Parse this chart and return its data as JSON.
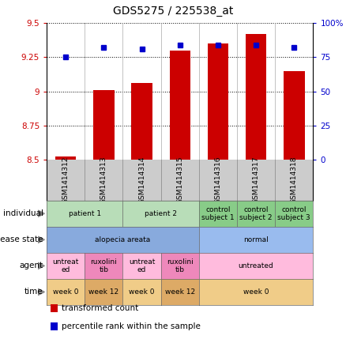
{
  "title": "GDS5275 / 225538_at",
  "samples": [
    "GSM1414312",
    "GSM1414313",
    "GSM1414314",
    "GSM1414315",
    "GSM1414316",
    "GSM1414317",
    "GSM1414318"
  ],
  "red_values": [
    8.52,
    9.01,
    9.06,
    9.3,
    9.35,
    9.42,
    9.15
  ],
  "blue_values": [
    75,
    82,
    81,
    84,
    84,
    84,
    82
  ],
  "ylim_left": [
    8.5,
    9.5
  ],
  "ylim_right": [
    0,
    100
  ],
  "yticks_left": [
    8.5,
    8.75,
    9.0,
    9.25,
    9.5
  ],
  "ytick_labels_left": [
    "8.5",
    "8.75",
    "9",
    "9.25",
    "9.5"
  ],
  "ytick_labels_right": [
    "0",
    "25",
    "50",
    "75",
    "100%"
  ],
  "bar_color": "#cc0000",
  "dot_color": "#0000cc",
  "annotation_rows": [
    {
      "label": "individual",
      "cells": [
        {
          "text": "patient 1",
          "span": 2,
          "color": "#b8ddb8"
        },
        {
          "text": "patient 2",
          "span": 2,
          "color": "#b8ddb8"
        },
        {
          "text": "control\nsubject 1",
          "span": 1,
          "color": "#88cc88"
        },
        {
          "text": "control\nsubject 2",
          "span": 1,
          "color": "#88cc88"
        },
        {
          "text": "control\nsubject 3",
          "span": 1,
          "color": "#88cc88"
        }
      ]
    },
    {
      "label": "disease state",
      "cells": [
        {
          "text": "alopecia areata",
          "span": 4,
          "color": "#88aadd"
        },
        {
          "text": "normal",
          "span": 3,
          "color": "#99bbee"
        }
      ]
    },
    {
      "label": "agent",
      "cells": [
        {
          "text": "untreat\ned",
          "span": 1,
          "color": "#ffbbdd"
        },
        {
          "text": "ruxolini\ntib",
          "span": 1,
          "color": "#ee88bb"
        },
        {
          "text": "untreat\ned",
          "span": 1,
          "color": "#ffbbdd"
        },
        {
          "text": "ruxolini\ntib",
          "span": 1,
          "color": "#ee88bb"
        },
        {
          "text": "untreated",
          "span": 3,
          "color": "#ffbbdd"
        }
      ]
    },
    {
      "label": "time",
      "cells": [
        {
          "text": "week 0",
          "span": 1,
          "color": "#f0cc88"
        },
        {
          "text": "week 12",
          "span": 1,
          "color": "#ddaa66"
        },
        {
          "text": "week 0",
          "span": 1,
          "color": "#f0cc88"
        },
        {
          "text": "week 12",
          "span": 1,
          "color": "#ddaa66"
        },
        {
          "text": "week 0",
          "span": 3,
          "color": "#f0cc88"
        }
      ]
    }
  ],
  "legend": [
    {
      "color": "#cc0000",
      "label": "transformed count"
    },
    {
      "color": "#0000cc",
      "label": "percentile rank within the sample"
    }
  ],
  "gsm_bg_color": "#cccccc",
  "gsm_border_color": "#999999"
}
